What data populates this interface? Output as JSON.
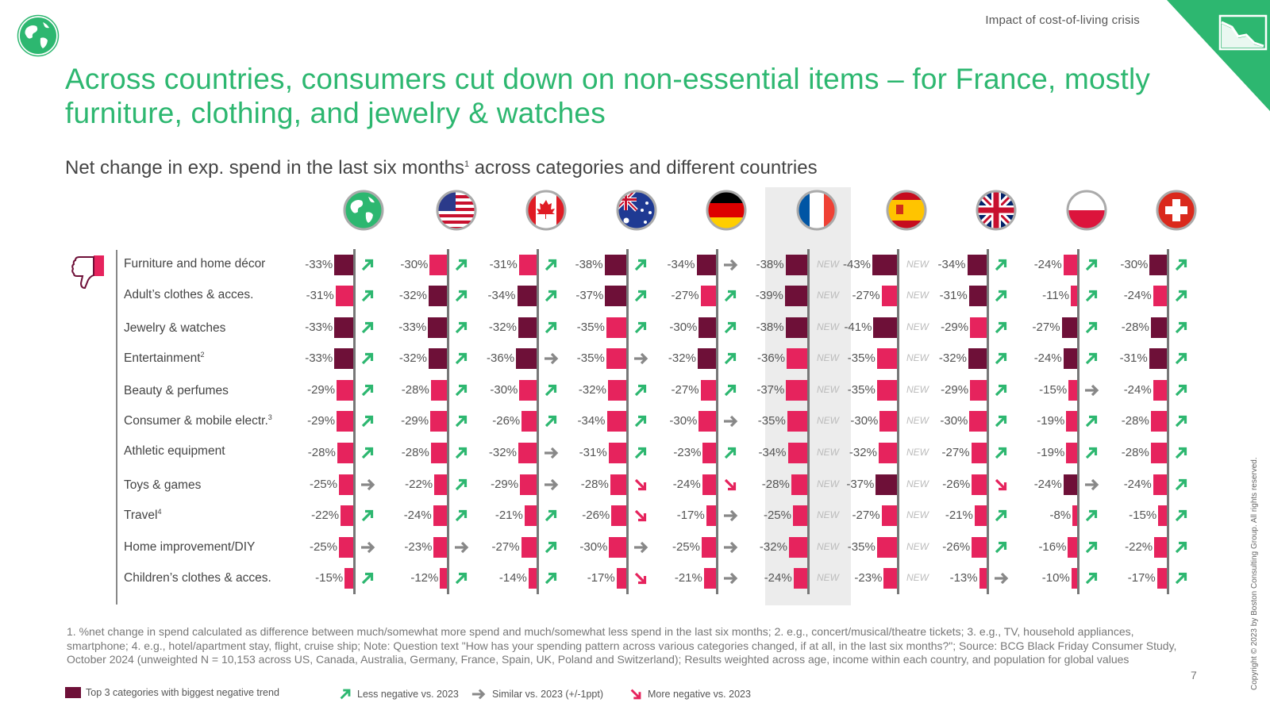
{
  "header": {
    "section": "Impact of cost-of-living crisis",
    "title": "Across countries, consumers cut down on non-essential items – for France, mostly furniture, clothing, and jewelry & watches",
    "subtitle": "Net change in exp. spend in the last six months",
    "subtitle_sup": "1",
    "subtitle_rest": " across categories and different countries"
  },
  "colors": {
    "brand": "#2db770",
    "top3": "#6e1038",
    "bar": "#e6235d",
    "arrow_less": "#2db770",
    "arrow_similar": "#888888",
    "arrow_more": "#e6235d",
    "highlight": "#ececec"
  },
  "chart_data": {
    "type": "bar",
    "orientation": "horizontal",
    "columns": [
      "Global",
      "US",
      "Canada",
      "Australia",
      "Germany",
      "France",
      "Spain",
      "UK",
      "Poland",
      "Switzerland"
    ],
    "column_icons": [
      "globe-icon",
      "flag-us-icon",
      "flag-canada-icon",
      "flag-australia-icon",
      "flag-germany-icon",
      "flag-france-icon",
      "flag-spain-icon",
      "flag-uk-icon",
      "flag-poland-icon",
      "flag-switzerland-icon"
    ],
    "highlighted_column": "France",
    "categories": [
      {
        "label": "Furniture and home décor",
        "sup": ""
      },
      {
        "label": "Adult’s clothes & acces.",
        "sup": ""
      },
      {
        "label": "Jewelry & watches",
        "sup": ""
      },
      {
        "label": "Entertainment",
        "sup": "2"
      },
      {
        "label": "Beauty & perfumes",
        "sup": ""
      },
      {
        "label": "Consumer & mobile electr.",
        "sup": "3"
      },
      {
        "label": "Athletic equipment",
        "sup": ""
      },
      {
        "label": "Toys & games",
        "sup": ""
      },
      {
        "label": "Travel",
        "sup": "4"
      },
      {
        "label": "Home improvement/DIY",
        "sup": ""
      },
      {
        "label": "Children’s clothes & acces.",
        "sup": ""
      }
    ],
    "unit": "%",
    "values": [
      [
        -33,
        -30,
        -31,
        -38,
        -34,
        -38,
        -43,
        -34,
        -24,
        -30
      ],
      [
        -31,
        -32,
        -34,
        -37,
        -27,
        -39,
        -27,
        -31,
        -11,
        -24
      ],
      [
        -33,
        -33,
        -32,
        -35,
        -30,
        -38,
        -41,
        -29,
        -27,
        -28
      ],
      [
        -33,
        -32,
        -36,
        -35,
        -32,
        -36,
        -35,
        -32,
        -24,
        -31
      ],
      [
        -29,
        -28,
        -30,
        -32,
        -27,
        -37,
        -35,
        -29,
        -15,
        -24
      ],
      [
        -29,
        -29,
        -26,
        -34,
        -30,
        -35,
        -30,
        -30,
        -19,
        -28
      ],
      [
        -28,
        -28,
        -32,
        -31,
        -23,
        -34,
        -32,
        -27,
        -19,
        -28
      ],
      [
        -25,
        -22,
        -29,
        -28,
        -24,
        -28,
        -37,
        -26,
        -24,
        -24
      ],
      [
        -22,
        -24,
        -21,
        -26,
        -17,
        -25,
        -27,
        -21,
        -8,
        -15
      ],
      [
        -25,
        -23,
        -27,
        -30,
        -25,
        -32,
        -35,
        -26,
        -16,
        -22
      ],
      [
        -15,
        -12,
        -14,
        -17,
        -21,
        -24,
        -23,
        -13,
        -10,
        -17
      ]
    ],
    "top3": [
      [
        1,
        0,
        0,
        1,
        1,
        1,
        1,
        1,
        0,
        1
      ],
      [
        0,
        1,
        1,
        1,
        0,
        1,
        0,
        1,
        0,
        0
      ],
      [
        1,
        1,
        1,
        0,
        1,
        1,
        1,
        0,
        1,
        1
      ],
      [
        1,
        1,
        1,
        0,
        1,
        0,
        0,
        1,
        1,
        1
      ],
      [
        0,
        0,
        0,
        0,
        0,
        0,
        0,
        0,
        0,
        0
      ],
      [
        0,
        0,
        0,
        0,
        0,
        0,
        0,
        0,
        0,
        0
      ],
      [
        0,
        0,
        0,
        0,
        0,
        0,
        0,
        0,
        0,
        0
      ],
      [
        0,
        0,
        0,
        0,
        0,
        0,
        1,
        0,
        1,
        0
      ],
      [
        0,
        0,
        0,
        0,
        0,
        0,
        0,
        0,
        0,
        0
      ],
      [
        0,
        0,
        0,
        0,
        0,
        0,
        0,
        0,
        0,
        0
      ],
      [
        0,
        0,
        0,
        0,
        0,
        0,
        0,
        0,
        0,
        0
      ]
    ],
    "trend": [
      [
        "less",
        "less",
        "less",
        "less",
        "similar",
        "new",
        "new",
        "less",
        "less",
        "less"
      ],
      [
        "less",
        "less",
        "less",
        "less",
        "less",
        "new",
        "new",
        "less",
        "less",
        "less"
      ],
      [
        "less",
        "less",
        "less",
        "less",
        "less",
        "new",
        "new",
        "less",
        "less",
        "less"
      ],
      [
        "less",
        "less",
        "similar",
        "similar",
        "less",
        "new",
        "new",
        "less",
        "less",
        "less"
      ],
      [
        "less",
        "less",
        "less",
        "less",
        "less",
        "new",
        "new",
        "less",
        "similar",
        "less"
      ],
      [
        "less",
        "less",
        "less",
        "less",
        "similar",
        "new",
        "new",
        "less",
        "less",
        "less"
      ],
      [
        "less",
        "less",
        "similar",
        "less",
        "less",
        "new",
        "new",
        "less",
        "less",
        "less"
      ],
      [
        "similar",
        "less",
        "similar",
        "more",
        "more",
        "new",
        "new",
        "more",
        "similar",
        "less"
      ],
      [
        "less",
        "less",
        "less",
        "more",
        "similar",
        "new",
        "new",
        "less",
        "less",
        "less"
      ],
      [
        "similar",
        "similar",
        "less",
        "similar",
        "similar",
        "new",
        "new",
        "less",
        "less",
        "less"
      ],
      [
        "less",
        "less",
        "less",
        "more",
        "similar",
        "new",
        "new",
        "similar",
        "less",
        "less"
      ]
    ],
    "new_label": "NEW"
  },
  "legend": {
    "top3": "Top 3 categories with biggest negative trend",
    "less": "Less negative vs. 2023",
    "similar": "Similar vs. 2023 (+/-1ppt)",
    "more": "More negative vs. 2023"
  },
  "footnote": "1. %net change in spend calculated as difference between much/somewhat more spend and much/somewhat less spend in the last six months; 2. e.g., concert/musical/theatre tickets; 3. e.g., TV, household appliances, smartphone; 4. e.g., hotel/apartment stay, flight, cruise ship; Note: Question text \"How has your spending pattern across various categories changed, if at all, in the last six months?\"; Source: BCG Black Friday Consumer Study, October 2024 (unweighted N = 10,153 across US, Canada, Australia, Germany, France, Spain, UK, Poland and Switzerland); Results weighted across age, income within each country, and population for global values",
  "page_number": "7",
  "copyright": "Copyright © 2023 by Boston Consulting Group. All rights reserved."
}
